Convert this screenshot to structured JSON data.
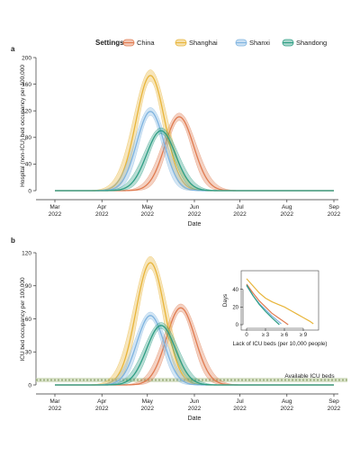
{
  "legend": {
    "title": "Settings",
    "items": [
      {
        "label": "China",
        "color": "#E07B50"
      },
      {
        "label": "Shanghai",
        "color": "#E8B53A"
      },
      {
        "label": "Shanxi",
        "color": "#7FB4E0"
      },
      {
        "label": "Shandong",
        "color": "#2E9E84"
      }
    ],
    "placement": "top-center"
  },
  "chart_data": [
    {
      "panel": "a",
      "type": "line",
      "xlabel": "Date",
      "ylabel": "Hospital (non-ICU) bed occupancy per 100,000",
      "ylim": [
        0,
        200
      ],
      "yticks": [
        0,
        40,
        80,
        120,
        160,
        200
      ],
      "xticks": [
        "Mar\n2022",
        "Apr\n2022",
        "May\n2022",
        "Jun\n2022",
        "Jul\n2022",
        "Aug\n2022",
        "Sep\n2022"
      ],
      "xlim": [
        "2022-03-01",
        "2022-09-01"
      ],
      "grid": false,
      "series": [
        {
          "name": "China",
          "color": "#E07B50",
          "peak": 111,
          "peak_date": "2022-05-22",
          "sigma_days": 9.5
        },
        {
          "name": "Shanghai",
          "color": "#E8B53A",
          "peak": 173,
          "peak_date": "2022-05-03",
          "sigma_days": 9.5
        },
        {
          "name": "Shanxi",
          "color": "#7FB4E0",
          "peak": 119,
          "peak_date": "2022-05-03",
          "sigma_days": 9.0
        },
        {
          "name": "Shandong",
          "color": "#2E9E84",
          "peak": 90,
          "peak_date": "2022-05-10",
          "sigma_days": 9.5
        }
      ]
    },
    {
      "panel": "b",
      "type": "line",
      "xlabel": "Date",
      "ylabel": "ICU bed occupancy per 100,000",
      "ylim": [
        0,
        120
      ],
      "yticks": [
        0,
        30,
        60,
        90,
        120
      ],
      "xticks": [
        "Mar\n2022",
        "Apr\n2022",
        "May\n2022",
        "Jun\n2022",
        "Jul\n2022",
        "Aug\n2022",
        "Sep\n2022"
      ],
      "xlim": [
        "2022-03-01",
        "2022-09-01"
      ],
      "grid": false,
      "hline": {
        "label": "Available ICU beds",
        "value": 4.5
      },
      "series": [
        {
          "name": "China",
          "color": "#E07B50",
          "peak": 70,
          "peak_date": "2022-05-23",
          "sigma_days": 9.5
        },
        {
          "name": "Shanghai",
          "color": "#E8B53A",
          "peak": 111,
          "peak_date": "2022-05-03",
          "sigma_days": 9.5
        },
        {
          "name": "Shanxi",
          "color": "#7FB4E0",
          "peak": 63,
          "peak_date": "2022-05-03",
          "sigma_days": 9.0
        },
        {
          "name": "Shandong",
          "color": "#2E9E84",
          "peak": 54,
          "peak_date": "2022-05-10",
          "sigma_days": 9.5
        }
      ]
    },
    {
      "panel": "b-inset",
      "type": "line",
      "xlabel": "Lack of ICU beds (per 10,000 people)",
      "ylabel": "Days",
      "ylim": [
        0,
        58
      ],
      "xlim": [
        0,
        11
      ],
      "yticks": [
        0,
        20,
        40
      ],
      "xticks": [
        "0",
        "≥ 3",
        "≥ 6",
        "≥ 9"
      ],
      "series": [
        {
          "name": "China",
          "color": "#E07B50",
          "x": [
            0,
            1,
            2,
            3,
            4,
            5,
            6,
            6.6
          ],
          "y": [
            46,
            36,
            27,
            20,
            13,
            8,
            3,
            0
          ]
        },
        {
          "name": "Shanghai",
          "color": "#E8B53A",
          "x": [
            0,
            1,
            2,
            3,
            4,
            5,
            6,
            7,
            8,
            9,
            10,
            10.6
          ],
          "y": [
            52,
            44,
            36,
            30,
            26,
            23,
            20,
            16,
            12,
            8,
            4,
            1
          ]
        },
        {
          "name": "Shanxi",
          "color": "#7FB4E0",
          "x": [
            0,
            1,
            2,
            3,
            4,
            5,
            5.5
          ],
          "y": [
            44,
            33,
            24,
            17,
            10,
            4,
            1
          ]
        },
        {
          "name": "Shandong",
          "color": "#2E9E84",
          "x": [
            0,
            1,
            2,
            3,
            4,
            5.2
          ],
          "y": [
            45,
            33,
            23,
            15,
            8,
            0
          ]
        }
      ]
    }
  ],
  "panel_labels": {
    "a": "a",
    "b": "b"
  }
}
